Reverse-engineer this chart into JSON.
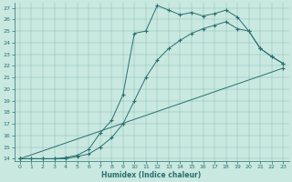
{
  "title": "",
  "xlabel": "Humidex (Indice chaleur)",
  "ylabel": "",
  "bg_color": "#c8e8e0",
  "line_color": "#2a7070",
  "xlim": [
    -0.5,
    23.5
  ],
  "ylim": [
    13.8,
    27.4
  ],
  "xticks": [
    0,
    1,
    2,
    3,
    4,
    5,
    6,
    7,
    8,
    9,
    10,
    11,
    12,
    13,
    14,
    15,
    16,
    17,
    18,
    19,
    20,
    21,
    22,
    23
  ],
  "yticks": [
    14,
    15,
    16,
    17,
    18,
    19,
    20,
    21,
    22,
    23,
    24,
    25,
    26,
    27
  ],
  "line1_x": [
    0,
    1,
    2,
    3,
    4,
    5,
    6,
    7,
    8,
    9,
    10,
    11,
    12,
    13,
    14,
    15,
    16,
    17,
    18,
    19,
    20,
    21,
    22,
    23
  ],
  "line1_y": [
    14,
    14,
    14,
    14,
    14.1,
    14.3,
    14.8,
    16.2,
    17.3,
    19.5,
    24.8,
    25.0,
    27.2,
    26.8,
    26.4,
    26.6,
    26.3,
    26.5,
    26.8,
    26.2,
    25.0,
    23.5,
    22.8,
    22.2
  ],
  "line2_x": [
    0,
    1,
    2,
    3,
    4,
    5,
    6,
    7,
    8,
    9,
    10,
    11,
    12,
    13,
    14,
    15,
    16,
    17,
    18,
    19,
    20,
    21,
    22,
    23
  ],
  "line2_y": [
    14,
    14,
    14,
    14,
    14.0,
    14.2,
    14.4,
    15.0,
    15.8,
    17.0,
    19.0,
    21.0,
    22.5,
    23.5,
    24.2,
    24.8,
    25.2,
    25.5,
    25.8,
    25.2,
    25.0,
    23.5,
    22.8,
    22.2
  ],
  "line3_x": [
    0,
    23
  ],
  "line3_y": [
    14,
    21.8
  ],
  "marker": "+",
  "markersize": 3.5,
  "linewidth": 0.7,
  "tick_fontsize": 4.5,
  "xlabel_fontsize": 5.5
}
